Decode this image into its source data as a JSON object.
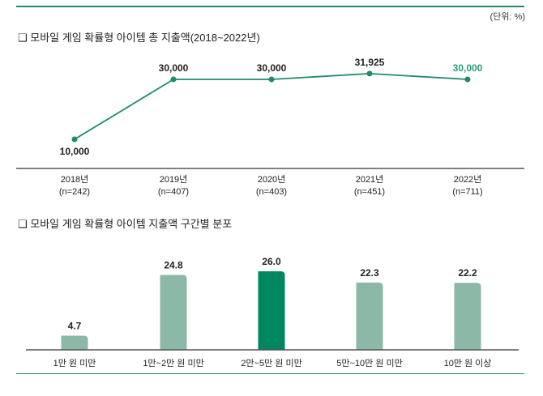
{
  "unit": "(단위: %)",
  "chart_data": [
    {
      "type": "line",
      "title": "❑ 모바일 게임 확률형 아이템 총 지출액(2018~2022년)",
      "categories": [
        "2018년",
        "2019년",
        "2020년",
        "2021년",
        "2022년"
      ],
      "category_sublabels": [
        "(n=242)",
        "(n=407)",
        "(n=403)",
        "(n=451)",
        "(n=711)"
      ],
      "values": [
        10000,
        30000,
        30000,
        31925,
        30000
      ],
      "data_labels": [
        "10,000",
        "30,000",
        "30,000",
        "31,925",
        "30,000"
      ],
      "color": "#1f8a6e",
      "highlight_label_color": "#2a9a78"
    },
    {
      "type": "bar",
      "title": "❑ 모바일 게임 확률형 아이템 지출액 구간별 분포",
      "categories": [
        "1만 원 미만",
        "1만~2만 원 미만",
        "2만~5만 원 미만",
        "5만~10만 원 미만",
        "10만 원 이상"
      ],
      "values": [
        4.7,
        24.8,
        26.0,
        22.3,
        22.2
      ],
      "data_labels": [
        "4.7",
        "24.8",
        "26.0",
        "22.3",
        "22.2"
      ],
      "colors": [
        "#8cb8a8",
        "#8cb8a8",
        "#00875f",
        "#8cb8a8",
        "#8cb8a8"
      ]
    }
  ]
}
